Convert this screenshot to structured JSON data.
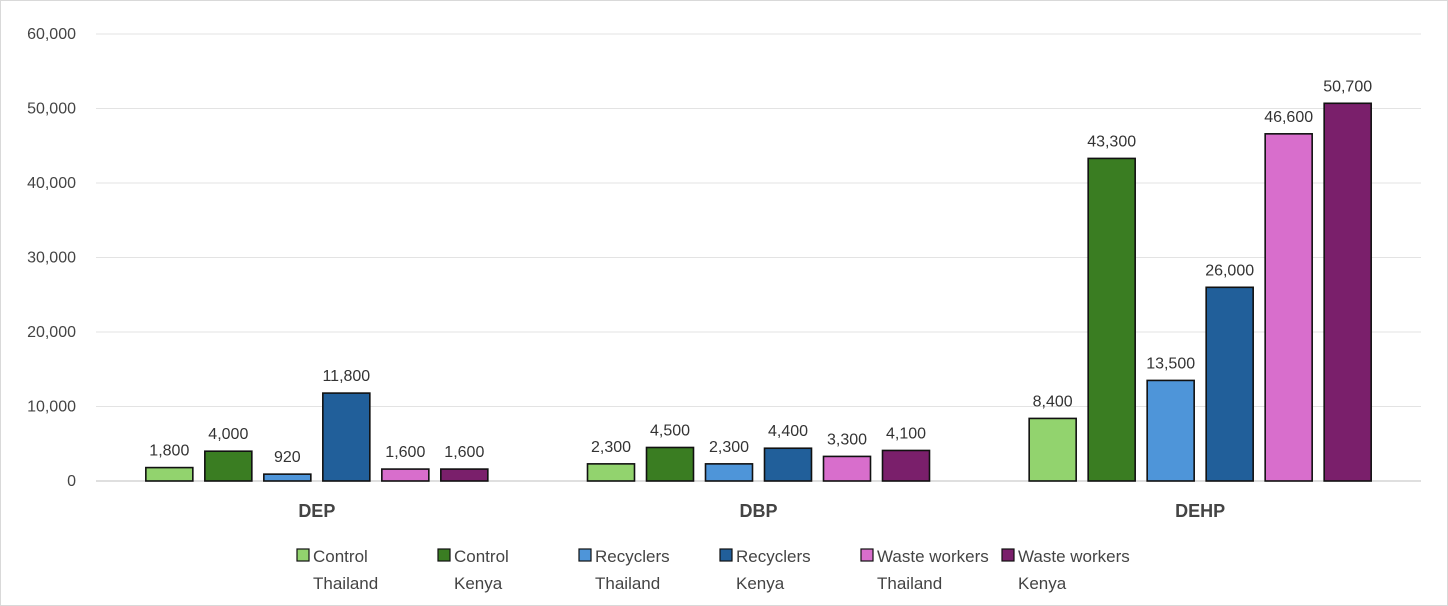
{
  "chart_data": {
    "type": "bar",
    "categories": [
      "DEP",
      "DBP",
      "DEHP"
    ],
    "ylim": [
      0,
      60000
    ],
    "yticks": [
      "0",
      "10,000",
      "20,000",
      "30,000",
      "40,000",
      "50,000",
      "60,000"
    ],
    "grid": true,
    "legend_position": "bottom",
    "series": [
      {
        "name": "Control Thailand",
        "name_lines": [
          "Control",
          "Thailand"
        ],
        "color": "#92d36e",
        "values": [
          1800,
          2300,
          8400
        ],
        "labels": [
          "1,800",
          "2,300",
          "8,400"
        ]
      },
      {
        "name": "Control Kenya",
        "name_lines": [
          "Control",
          "Kenya"
        ],
        "color": "#3a7d22",
        "values": [
          4000,
          4500,
          43300
        ],
        "labels": [
          "4,000",
          "4,500",
          "43,300"
        ]
      },
      {
        "name": "Recyclers Thailand",
        "name_lines": [
          "Recyclers",
          "Thailand"
        ],
        "color": "#4e95d9",
        "values": [
          920,
          2300,
          13500
        ],
        "labels": [
          "920",
          "2,300",
          "13,500"
        ]
      },
      {
        "name": "Recyclers Kenya",
        "name_lines": [
          "Recyclers",
          "Kenya"
        ],
        "color": "#215f9a",
        "values": [
          11800,
          4400,
          26000
        ],
        "labels": [
          "11,800",
          "4,400",
          "26,000"
        ]
      },
      {
        "name": "Waste workers Thailand",
        "name_lines": [
          "Waste workers",
          "Thailand"
        ],
        "color": "#d86ecc",
        "values": [
          1600,
          3300,
          46600
        ],
        "labels": [
          "1,600",
          "3,300",
          "46,600"
        ]
      },
      {
        "name": "Waste workers Kenya",
        "name_lines": [
          "Waste workers",
          "Kenya"
        ],
        "color": "#7a1f6b",
        "values": [
          1600,
          4100,
          50700
        ],
        "labels": [
          "1,600",
          "4,100",
          "50,700"
        ]
      }
    ]
  }
}
